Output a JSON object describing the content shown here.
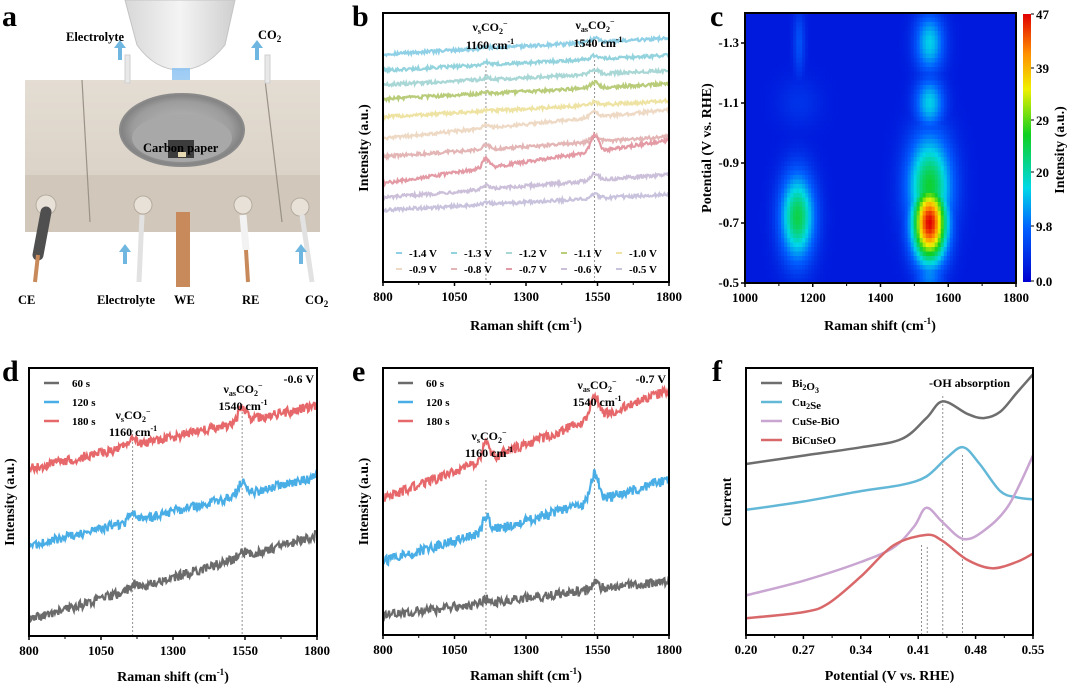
{
  "figure": {
    "panel_labels": [
      "a",
      "b",
      "c",
      "d",
      "e",
      "f"
    ]
  },
  "scheme": {
    "labels": {
      "electrolyte_top": "Electrolyte",
      "co2_top": "CO2",
      "carbon_paper": "Carbon paper",
      "ce": "CE",
      "electrolyte_bottom": "Electrolyte",
      "we": "WE",
      "re": "RE",
      "co2_bottom": "CO2"
    },
    "colors": {
      "cell": "#d9d1c6",
      "arrow": "#6fb7e0",
      "copper": "#c98a5b",
      "beam": "#8fc4f2",
      "cable": "#555555"
    }
  },
  "chart_data": [
    {
      "id": "b",
      "type": "line",
      "title": "",
      "xlabel": "Raman shift  (cm-1)",
      "ylabel": "Intensity (a.u.)",
      "xlim": [
        800,
        1800
      ],
      "xticks": [
        800,
        1050,
        1300,
        1550,
        1800
      ],
      "yticks": [],
      "annotations": [
        {
          "text": "νsCO2−",
          "sub": "1160 cm-1",
          "x": 1160
        },
        {
          "text": "νasCO2−",
          "sub": "1540 cm-1",
          "x": 1540
        }
      ],
      "legend_placement": "bottom",
      "series": [
        {
          "name": "-1.4 V",
          "color": "#8fd0e6",
          "offset": 9.2,
          "slope": 0.9,
          "peak1": 0.1,
          "peak2": 0.25
        },
        {
          "name": "-1.3 V",
          "color": "#93d3dd",
          "offset": 8.3,
          "slope": 0.85,
          "peak1": 0.15,
          "peak2": 0.2
        },
        {
          "name": "-1.2 V",
          "color": "#a9d7d6",
          "offset": 7.5,
          "slope": 0.8,
          "peak1": 0.1,
          "peak2": 0.25
        },
        {
          "name": "-1.1 V",
          "color": "#b8cc7a",
          "offset": 6.7,
          "slope": 0.85,
          "peak1": 0.1,
          "peak2": 0.3
        },
        {
          "name": "-1.0 V",
          "color": "#eee3a3",
          "offset": 5.7,
          "slope": 0.9,
          "peak1": 0.05,
          "peak2": 0.15
        },
        {
          "name": "-0.9 V",
          "color": "#eed9c5",
          "offset": 4.5,
          "slope": 1.6,
          "peak1": 0.2,
          "peak2": 0.3
        },
        {
          "name": "-0.8 V",
          "color": "#e4b5b5",
          "offset": 3.5,
          "slope": 1.1,
          "peak1": 0.3,
          "peak2": 0.35
        },
        {
          "name": "-0.7 V",
          "color": "#e39aa4",
          "offset": 2.0,
          "slope": 2.4,
          "peak1": 0.5,
          "peak2": 0.9
        },
        {
          "name": "-0.6 V",
          "color": "#cbbfd9",
          "offset": 1.2,
          "slope": 1.3,
          "peak1": 0.2,
          "peak2": 0.4
        },
        {
          "name": "-0.5 V",
          "color": "#c9c2dd",
          "offset": 0.5,
          "slope": 0.9,
          "peak1": 0.1,
          "peak2": 0.2
        }
      ]
    },
    {
      "id": "c",
      "type": "heatmap",
      "xlabel": "Raman shift (cm-1)",
      "ylabel": "Potential (V vs. RHE)",
      "colorbar_label": "Intensity (a.u.)",
      "xlim": [
        1000,
        1800
      ],
      "ylim": [
        -0.5,
        -1.4
      ],
      "xticks": [
        1000,
        1200,
        1400,
        1600,
        1800
      ],
      "yticks": [
        -1.3,
        -1.1,
        -0.9,
        -0.7,
        -0.5
      ],
      "zlim": [
        0.0,
        47
      ],
      "colorbar_ticks": [
        "47",
        "39",
        "29",
        "20",
        "9.8",
        "0.0"
      ],
      "hotspots": [
        {
          "x": 1155,
          "y": -0.72,
          "value": 24,
          "sx": 35,
          "sy": 0.1
        },
        {
          "x": 1160,
          "y": -1.1,
          "value": 5,
          "sx": 45,
          "sy": 0.06
        },
        {
          "x": 1160,
          "y": -1.3,
          "value": 8,
          "sx": 12,
          "sy": 0.08
        },
        {
          "x": 1545,
          "y": -0.7,
          "value": 47,
          "sx": 35,
          "sy": 0.09
        },
        {
          "x": 1545,
          "y": -0.82,
          "value": 25,
          "sx": 45,
          "sy": 0.12
        },
        {
          "x": 1545,
          "y": -1.1,
          "value": 16,
          "sx": 30,
          "sy": 0.06
        },
        {
          "x": 1545,
          "y": -1.3,
          "value": 16,
          "sx": 30,
          "sy": 0.07
        },
        {
          "x": 1545,
          "y": -0.55,
          "value": 12,
          "sx": 30,
          "sy": 0.1
        }
      ]
    },
    {
      "id": "d",
      "type": "line",
      "xlabel": "Raman shift  (cm-1)",
      "ylabel": "Intensity (a.u.)",
      "xlim": [
        800,
        1800
      ],
      "xticks": [
        800,
        1050,
        1300,
        1550,
        1800
      ],
      "condition": "-0.6 V",
      "annotations": [
        {
          "text": "νsCO2−",
          "sub": "1160 cm-1",
          "x": 1160
        },
        {
          "text": "νasCO2−",
          "sub": "1540 cm-1",
          "x": 1540
        }
      ],
      "legend_placement": "top-left",
      "series": [
        {
          "name": "60 s",
          "color": "#6b6b6b",
          "offset": 0.3,
          "slope": 3.2,
          "peak1": 0.2,
          "peak2": 0.2
        },
        {
          "name": "120 s",
          "color": "#4aaee6",
          "offset": 3.1,
          "slope": 2.6,
          "peak1": 0.3,
          "peak2": 0.45
        },
        {
          "name": "180 s",
          "color": "#e7686a",
          "offset": 6.0,
          "slope": 2.4,
          "peak1": 0.25,
          "peak2": 0.5
        }
      ]
    },
    {
      "id": "e",
      "type": "line",
      "xlabel": "Raman shift  (cm-1)",
      "ylabel": "Intensity (a.u.)",
      "xlim": [
        800,
        1800
      ],
      "xticks": [
        800,
        1050,
        1300,
        1550,
        1800
      ],
      "condition": "-0.7 V",
      "annotations": [
        {
          "text": "νsCO2−",
          "sub": "1160 cm-1",
          "x": 1160
        },
        {
          "text": "νasCO2−",
          "sub": "1540 cm-1",
          "x": 1540
        }
      ],
      "legend_placement": "top-left",
      "series": [
        {
          "name": "60 s",
          "color": "#6b6b6b",
          "offset": 0.5,
          "slope": 1.3,
          "peak1": 0.15,
          "peak2": 0.25
        },
        {
          "name": "120 s",
          "color": "#4aaee6",
          "offset": 2.5,
          "slope": 3.0,
          "peak1": 0.6,
          "peak2": 1.0
        },
        {
          "name": "180 s",
          "color": "#e7686a",
          "offset": 4.8,
          "slope": 4.0,
          "peak1": 0.6,
          "peak2": 0.8
        }
      ]
    },
    {
      "id": "f",
      "type": "line",
      "xlabel": "Potential (V vs. RHE)",
      "ylabel": "Current",
      "xlim": [
        0.2,
        0.55
      ],
      "xticks": [
        "0.20",
        "0.27",
        "0.34",
        "0.41",
        "0.48",
        "0.55"
      ],
      "annotation": "-OH absorption",
      "peak_markers": [
        0.414,
        0.421,
        0.44,
        0.464
      ],
      "legend_placement": "top-left",
      "series": [
        {
          "name": "Bi2O3",
          "color": "#6e6e6e",
          "points": [
            [
              0.2,
              7.6
            ],
            [
              0.27,
              8.0
            ],
            [
              0.34,
              8.4
            ],
            [
              0.39,
              8.8
            ],
            [
              0.42,
              9.8
            ],
            [
              0.44,
              10.6
            ],
            [
              0.47,
              10.0
            ],
            [
              0.49,
              9.8
            ],
            [
              0.51,
              10.1
            ],
            [
              0.53,
              11.0
            ],
            [
              0.55,
              11.9
            ]
          ]
        },
        {
          "name": "Cu2Se",
          "color": "#63b8d8",
          "points": [
            [
              0.2,
              5.4
            ],
            [
              0.27,
              5.8
            ],
            [
              0.34,
              6.3
            ],
            [
              0.39,
              6.6
            ],
            [
              0.42,
              7.0
            ],
            [
              0.445,
              7.9
            ],
            [
              0.465,
              8.4
            ],
            [
              0.485,
              7.6
            ],
            [
              0.51,
              6.3
            ],
            [
              0.53,
              6.0
            ],
            [
              0.55,
              5.9
            ]
          ]
        },
        {
          "name": "CuSe-BiO",
          "color": "#c9a5d2",
          "points": [
            [
              0.2,
              1.3
            ],
            [
              0.27,
              2.0
            ],
            [
              0.34,
              2.9
            ],
            [
              0.38,
              3.6
            ],
            [
              0.405,
              4.6
            ],
            [
              0.42,
              5.5
            ],
            [
              0.44,
              4.8
            ],
            [
              0.465,
              4.0
            ],
            [
              0.49,
              4.4
            ],
            [
              0.52,
              5.6
            ],
            [
              0.55,
              8.0
            ]
          ]
        },
        {
          "name": "BiCuSeO",
          "color": "#d9686a",
          "points": [
            [
              0.2,
              0.2
            ],
            [
              0.27,
              0.5
            ],
            [
              0.3,
              0.9
            ],
            [
              0.34,
              2.2
            ],
            [
              0.38,
              3.7
            ],
            [
              0.42,
              4.2
            ],
            [
              0.44,
              3.9
            ],
            [
              0.47,
              3.0
            ],
            [
              0.5,
              2.6
            ],
            [
              0.53,
              2.9
            ],
            [
              0.55,
              3.3
            ]
          ]
        }
      ]
    }
  ]
}
